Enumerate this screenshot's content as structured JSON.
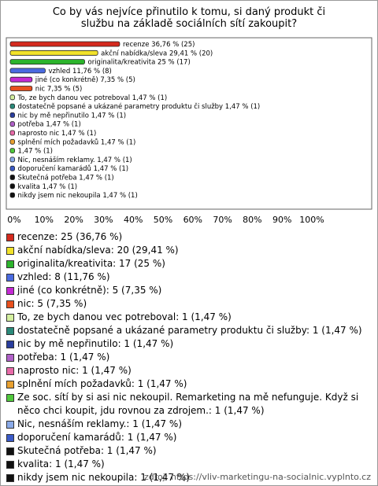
{
  "chart_data": {
    "type": "bar",
    "orientation": "horizontal",
    "title": "Co by vás nejvíce přinutilo k tomu, si daný produkt či službu na základě sociálních sítí zakoupit?",
    "values": [
      36.76,
      29.41,
      25,
      11.76,
      7.35,
      7.35,
      1.47,
      1.47,
      1.47,
      1.47,
      1.47,
      1.47,
      1.47,
      1.47,
      1.47,
      1.47,
      1.47,
      1.47
    ],
    "value_labels": [
      "recenze 36,76 % (25)",
      "akční nabídka/sleva 29,41 % (20)",
      "originalita/kreativita 25 % (17)",
      "vzhled 11,76 % (8)",
      "jiné (co konkrétně) 7,35 % (5)",
      "nic 7,35 % (5)",
      "To, ze bych danou vec potreboval 1,47 % (1)",
      "dostatečně popsané a ukázané parametry produktu či služby 1,47 % (1)",
      "nic by mě nepřinutilo 1,47 % (1)",
      "potřeba 1,47 % (1)",
      "naprosto nic 1,47 % (1)",
      "splnění mích požadavků 1,47 % (1)",
      "1,47 % (1)",
      "Nic, nesnáším reklamy. 1,47 % (1)",
      "doporučení kamarádů 1,47 % (1)",
      "Skutečná potřeba 1,47 % (1)",
      "kvalita 1,47 % (1)",
      "nikdy jsem nic nekoupila 1,47 % (1)"
    ],
    "legend": [
      "recenze: 25 (36,76 %)",
      "akční nabídka/sleva: 20 (29,41 %)",
      "originalita/kreativita: 17 (25 %)",
      "vzhled: 8 (11,76 %)",
      "jiné (co konkrétně): 5 (7,35 %)",
      "nic: 5 (7,35 %)",
      "To, ze bych danou vec potreboval: 1 (1,47 %)",
      "dostatečně popsané a ukázané parametry produktu či služby: 1 (1,47 %)",
      "nic by mě nepřinutilo: 1 (1,47 %)",
      "potřeba: 1 (1,47 %)",
      "naprosto nic: 1 (1,47 %)",
      "splnění mích požadavků: 1 (1,47 %)",
      "Ze soc. sítí by si asi nic nekoupil. Remarketing na mě nefunguje. Když si něco chci koupit, jdu rovnou za zdrojem.: 1 (1,47 %)",
      "Nic, nesnáším reklamy.: 1 (1,47 %)",
      "doporučení kamarádů: 1 (1,47 %)",
      "Skutečná potřeba: 1 (1,47 %)",
      "kvalita: 1 (1,47 %)",
      "nikdy jsem nic nekoupila: 1 (1,47 %)"
    ],
    "colors": [
      "#d42a1e",
      "#f2e22a",
      "#2cb42c",
      "#4a6ae0",
      "#c42ad4",
      "#e8501e",
      "#d4f0a0",
      "#2a8a7a",
      "#2a3e9e",
      "#b060c8",
      "#e86aa8",
      "#e8a030",
      "#50c83c",
      "#8aaae8",
      "#3a5ac8",
      "#111111",
      "#111111",
      "#111111"
    ],
    "xlim": [
      0,
      100
    ],
    "xticks": [
      {
        "value": 0,
        "label": "0%"
      },
      {
        "value": 10,
        "label": "10%"
      },
      {
        "value": 20,
        "label": "20%"
      },
      {
        "value": 30,
        "label": "30%"
      },
      {
        "value": 40,
        "label": "40%"
      },
      {
        "value": 50,
        "label": "50%"
      },
      {
        "value": 60,
        "label": "60%"
      },
      {
        "value": 70,
        "label": "70%"
      },
      {
        "value": 80,
        "label": "80%"
      },
      {
        "value": 90,
        "label": "90%"
      },
      {
        "value": 100,
        "label": "100%"
      }
    ],
    "source": "zdroj: https://vliv-marketingu-na-socialnic.vyplnto.cz"
  }
}
